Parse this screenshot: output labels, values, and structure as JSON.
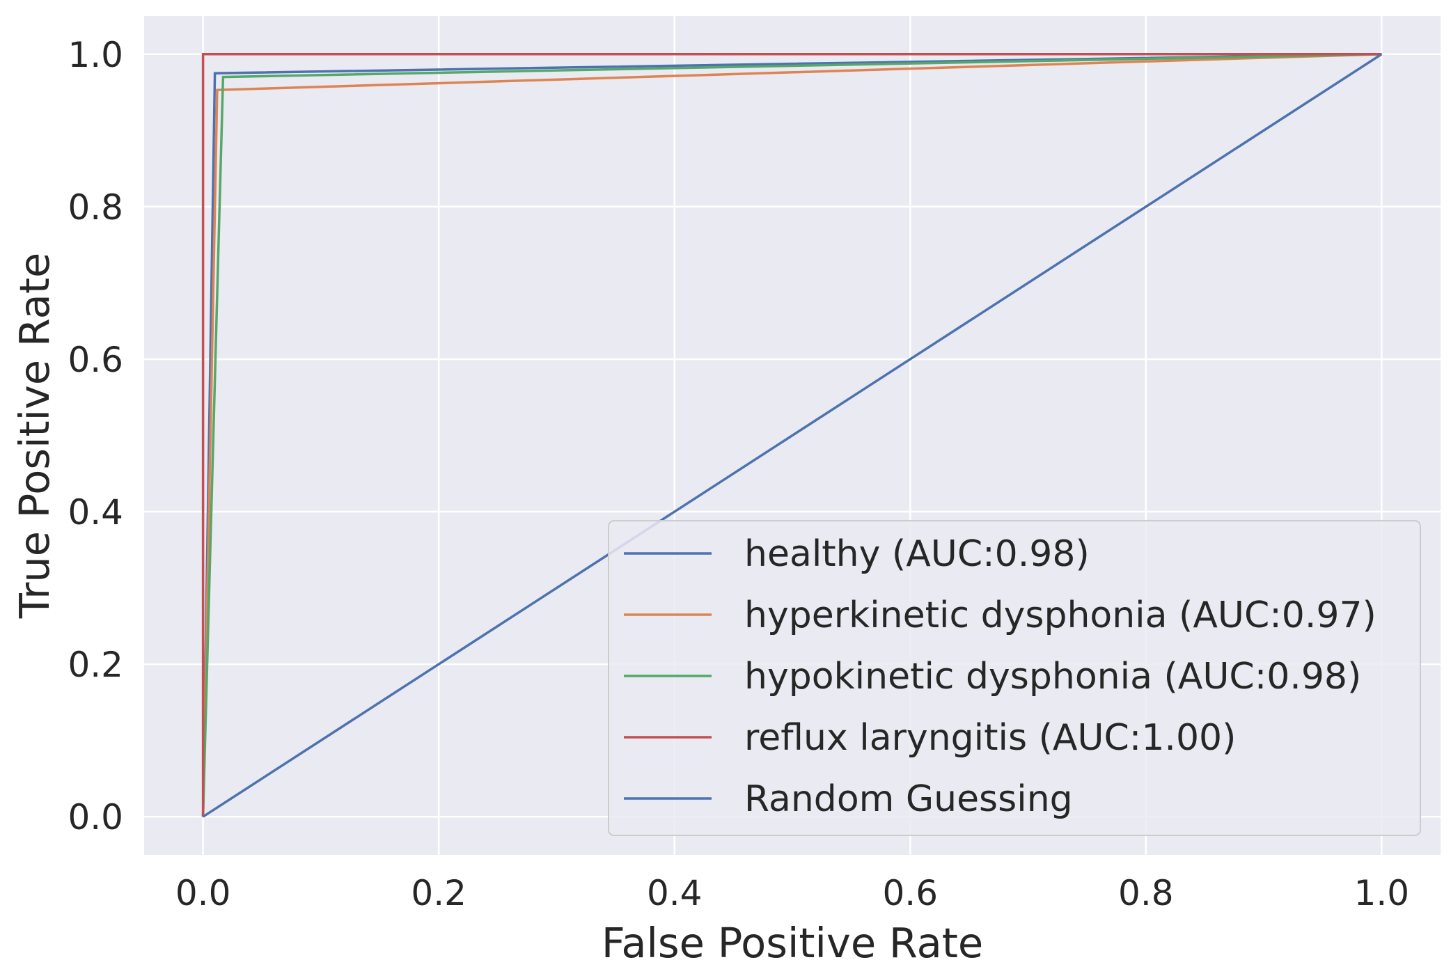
{
  "chart_data": {
    "type": "line",
    "title": "",
    "xlabel": "False Positive Rate",
    "ylabel": "True Positive Rate",
    "xlim": [
      -0.05,
      1.05
    ],
    "ylim": [
      -0.05,
      1.05
    ],
    "xticks": [
      "0.0",
      "0.2",
      "0.4",
      "0.6",
      "0.8",
      "1.0"
    ],
    "yticks": [
      "0.0",
      "0.2",
      "0.4",
      "0.6",
      "0.8",
      "1.0"
    ],
    "grid": true,
    "legend_position": "lower-right",
    "colors": {
      "background": "#eaeaf2",
      "grid": "#ffffff",
      "text": "#262626"
    },
    "series": [
      {
        "name": "healthy (AUC:0.98)",
        "color": "#4c72b0",
        "x": [
          0.0,
          0.01,
          1.0
        ],
        "y": [
          0.0,
          0.975,
          1.0
        ]
      },
      {
        "name": "hyperkinetic dysphonia (AUC:0.97)",
        "color": "#dd8452",
        "x": [
          0.0,
          0.012,
          1.0
        ],
        "y": [
          0.0,
          0.953,
          1.0
        ]
      },
      {
        "name": "hypokinetic dysphonia (AUC:0.98)",
        "color": "#55a868",
        "x": [
          0.0,
          0.017,
          1.0
        ],
        "y": [
          0.0,
          0.97,
          1.0
        ]
      },
      {
        "name": "reflux laryngitis (AUC:1.00)",
        "color": "#c44e52",
        "x": [
          0.0,
          0.0,
          1.0
        ],
        "y": [
          0.0,
          1.0,
          1.0
        ]
      },
      {
        "name": "Random Guessing",
        "color": "#4c72b0",
        "x": [
          0.0,
          1.0
        ],
        "y": [
          0.0,
          1.0
        ]
      }
    ]
  }
}
